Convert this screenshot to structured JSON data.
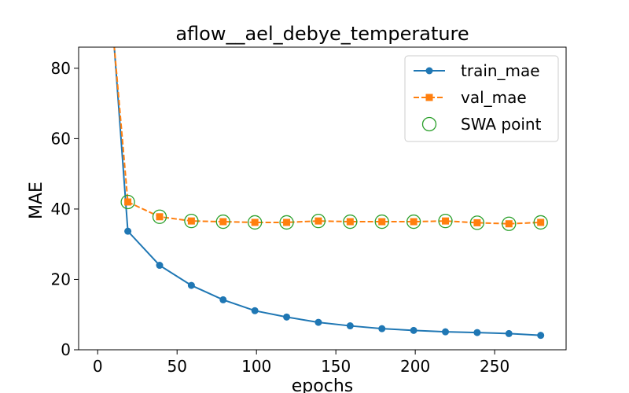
{
  "chart_data": {
    "type": "line",
    "title": "aflow__ael_debye_temperature",
    "xlabel": "epochs",
    "ylabel": "MAE",
    "xlim": [
      -12,
      295
    ],
    "ylim": [
      0,
      86
    ],
    "x_ticks": [
      0,
      50,
      100,
      150,
      200,
      250
    ],
    "y_ticks": [
      0,
      20,
      40,
      60,
      80
    ],
    "legend_position": "top-right",
    "grid": false,
    "series": [
      {
        "name": "train_mae",
        "style": "solid",
        "marker": "circle",
        "color": "#1f77b4",
        "x": [
          0,
          19,
          39,
          59,
          79,
          99,
          119,
          139,
          159,
          179,
          199,
          219,
          239,
          259,
          279
        ],
        "y": [
          150,
          33.7,
          24.0,
          18.3,
          14.2,
          11.1,
          9.3,
          7.8,
          6.8,
          6.0,
          5.5,
          5.1,
          4.9,
          4.6,
          4.1
        ],
        "markers_from_index": 1
      },
      {
        "name": "val_mae",
        "style": "dashed",
        "marker": "square",
        "color": "#ff7f0e",
        "x": [
          0,
          19,
          39,
          59,
          79,
          99,
          119,
          139,
          159,
          179,
          199,
          219,
          239,
          259,
          279
        ],
        "y": [
          140,
          42.0,
          37.8,
          36.6,
          36.4,
          36.2,
          36.2,
          36.6,
          36.4,
          36.4,
          36.4,
          36.6,
          36.1,
          35.8,
          36.2
        ],
        "markers_from_index": 1
      },
      {
        "name": "SWA point",
        "style": "none",
        "marker": "hollow-circle",
        "color": "#2ca02c",
        "x": [
          19,
          39,
          59,
          79,
          99,
          119,
          139,
          159,
          179,
          199,
          219,
          239,
          259,
          279
        ],
        "y": [
          42.0,
          37.8,
          36.6,
          36.4,
          36.2,
          36.2,
          36.6,
          36.4,
          36.4,
          36.4,
          36.6,
          36.1,
          35.8,
          36.2
        ]
      }
    ]
  }
}
